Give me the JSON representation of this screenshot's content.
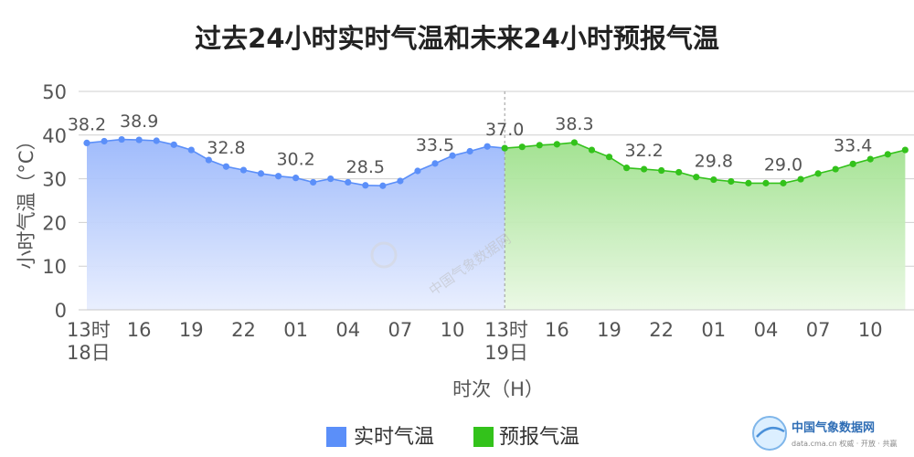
{
  "chart_data": {
    "type": "area",
    "title": "过去24小时实时气温和未来24小时预报气温",
    "ylabel": "小时气温（°C）",
    "xlabel": "时次（H）",
    "ylim": [
      0,
      50
    ],
    "yticks": [
      0,
      10,
      20,
      30,
      40,
      50
    ],
    "grid": true,
    "legend_position": "bottom-center",
    "x_tick_labels": [
      {
        "pos": 0,
        "line1": "13时",
        "line2": "18日"
      },
      {
        "pos": 3,
        "line1": "16",
        "line2": ""
      },
      {
        "pos": 6,
        "line1": "19",
        "line2": ""
      },
      {
        "pos": 9,
        "line1": "22",
        "line2": ""
      },
      {
        "pos": 12,
        "line1": "01",
        "line2": ""
      },
      {
        "pos": 15,
        "line1": "04",
        "line2": ""
      },
      {
        "pos": 18,
        "line1": "07",
        "line2": ""
      },
      {
        "pos": 21,
        "line1": "10",
        "line2": ""
      },
      {
        "pos": 24,
        "line1": "13时",
        "line2": "19日"
      },
      {
        "pos": 27,
        "line1": "16",
        "line2": ""
      },
      {
        "pos": 30,
        "line1": "19",
        "line2": ""
      },
      {
        "pos": 33,
        "line1": "22",
        "line2": ""
      },
      {
        "pos": 36,
        "line1": "01",
        "line2": ""
      },
      {
        "pos": 39,
        "line1": "04",
        "line2": ""
      },
      {
        "pos": 42,
        "line1": "07",
        "line2": ""
      },
      {
        "pos": 45,
        "line1": "10",
        "line2": ""
      }
    ],
    "series": [
      {
        "name": "实时气温",
        "color": "#5b8ff9",
        "x": [
          0,
          1,
          2,
          3,
          4,
          5,
          6,
          7,
          8,
          9,
          10,
          11,
          12,
          13,
          14,
          15,
          16,
          17,
          18,
          19,
          20,
          21,
          22,
          23,
          24
        ],
        "values": [
          38.2,
          38.6,
          39.0,
          38.9,
          38.7,
          37.8,
          36.6,
          34.3,
          32.8,
          32.0,
          31.2,
          30.6,
          30.2,
          29.2,
          30.0,
          29.2,
          28.5,
          28.4,
          29.5,
          31.8,
          33.5,
          35.3,
          36.3,
          37.4,
          37.0
        ],
        "labels": [
          {
            "index": 0,
            "text": "38.2"
          },
          {
            "index": 3,
            "text": "38.9"
          },
          {
            "index": 8,
            "text": "32.8"
          },
          {
            "index": 12,
            "text": "30.2"
          },
          {
            "index": 16,
            "text": "28.5"
          },
          {
            "index": 20,
            "text": "33.5"
          },
          {
            "index": 24,
            "text": "37.0"
          }
        ]
      },
      {
        "name": "预报气温",
        "color": "#33c21b",
        "x": [
          24,
          25,
          26,
          27,
          28,
          29,
          30,
          31,
          32,
          33,
          34,
          35,
          36,
          37,
          38,
          39,
          40,
          41,
          42,
          43,
          44,
          45,
          46,
          47
        ],
        "values": [
          37.0,
          37.3,
          37.7,
          37.9,
          38.3,
          36.6,
          35.0,
          32.5,
          32.2,
          31.9,
          31.5,
          30.4,
          29.8,
          29.4,
          29.0,
          29.0,
          29.0,
          29.9,
          31.2,
          32.2,
          33.4,
          34.5,
          35.6,
          36.6
        ],
        "labels": [
          {
            "index": 4,
            "text": "38.3"
          },
          {
            "index": 8,
            "text": "32.2"
          },
          {
            "index": 12,
            "text": "29.8"
          },
          {
            "index": 16,
            "text": "29.0"
          },
          {
            "index": 20,
            "text": "33.4"
          }
        ]
      }
    ]
  },
  "watermark": {
    "center_text": "中国气象数据网",
    "logo_name": "中国气象数据网",
    "logo_url": "data.cma.cn 权威 · 开放 · 共赢"
  }
}
